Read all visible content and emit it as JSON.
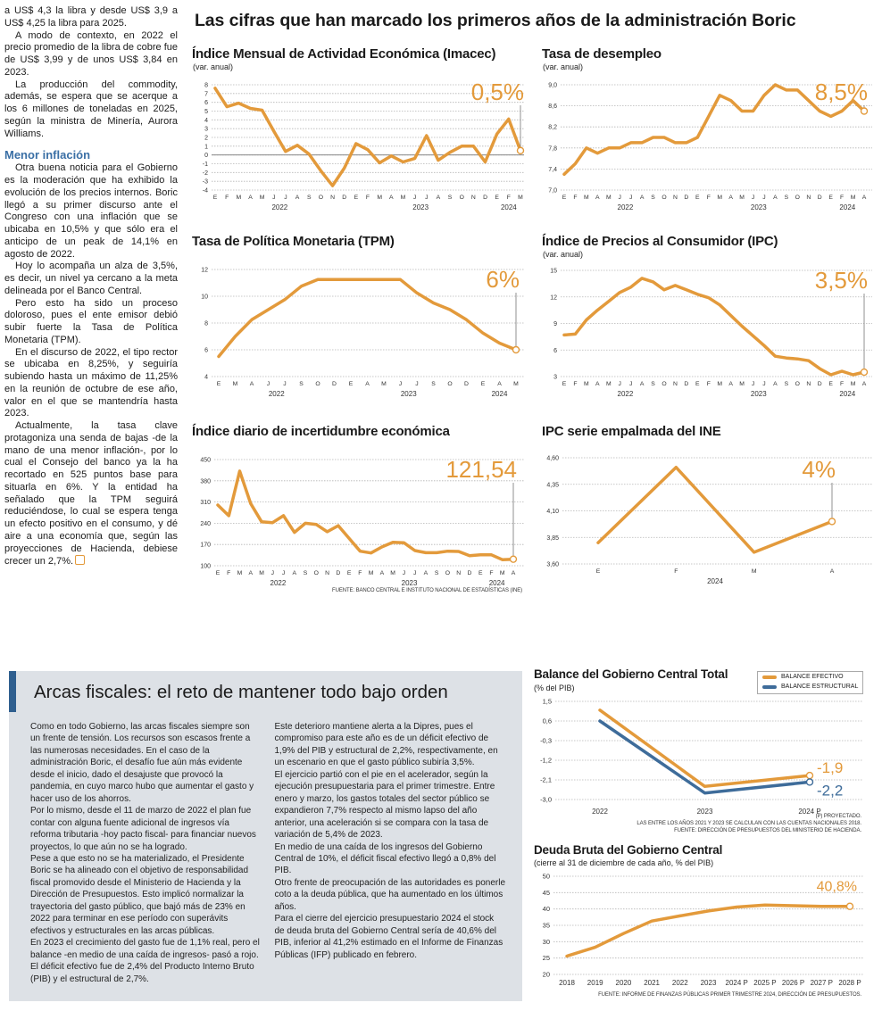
{
  "page": {
    "title": "Las cifras que han marcado los primeros años de la administración Boric"
  },
  "left_column": {
    "paragraphs_before": [
      "a US$ 4,3 la libra y desde US$ 3,9 a US$ 4,25 la libra para 2025.",
      "A modo de contexto, en 2022 el precio promedio de la libra de cobre fue de US$ 3,99 y de unos US$ 3,84 en 2023.",
      "La producción del commodity, además, se espera que se acerque a los 6 millones de toneladas en 2025, según la ministra de Minería, Aurora Williams."
    ],
    "subheading": "Menor inflación",
    "paragraphs_after": [
      "Otra buena noticia para el Gobierno es la moderación que ha exhibido la evolución de los precios internos. Boric llegó a su primer discurso ante el Congreso con una inflación que se ubicaba en 10,5% y que sólo era el anticipo de un peak de 14,1% en agosto de 2022.",
      "Hoy lo acompaña un alza de 3,5%, es decir, un nivel ya cercano a la meta delineada por el Banco Central.",
      "Pero esto ha sido un proceso doloroso, pues el ente emisor debió subir fuerte la Tasa de Política Monetaria (TPM).",
      "En el discurso de 2022, el tipo rector se ubicaba en 8,25%, y seguiría subiendo hasta un máximo de 11,25% en la reunión de octubre de ese año, valor en el que se mantendría hasta 2023.",
      "Actualmente, la tasa clave protagoniza una senda de bajas -de la mano de una menor inflación-, por lo cual el Consejo del banco ya la ha recortado en 525 puntos base para situarla en 6%. Y la entidad ha señalado que la TPM seguirá reduciéndose, lo cual se espera tenga un efecto positivo en el consumo, y dé aire a una economía que, según las proyecciones de Hacienda, debiese crecer un 2,7%."
    ],
    "subheading_color": "#3a6fa5"
  },
  "box": {
    "title": "Arcas fiscales: el reto de mantener todo bajo orden",
    "background": "#dde1e6",
    "accent": "#2f5f8f",
    "paragraphs": [
      "Como en todo Gobierno, las arcas fiscales siempre son un frente de tensión. Los recursos son escasos frente a las numerosas necesidades. En el caso de la administración Boric, el desafío fue aún más evidente desde el inicio, dado el desajuste que provocó la pandemia, en cuyo marco hubo que aumentar el gasto y hacer uso de los ahorros.",
      "Por lo mismo, desde el 11 de marzo de 2022 el plan fue contar con alguna fuente adicional de ingresos vía reforma tributaria -hoy pacto fiscal- para financiar nuevos proyectos, lo que aún no se ha logrado.",
      "Pese a que esto no se ha materializado, el Presidente Boric se ha alineado con el objetivo de responsabilidad fiscal promovido desde el Ministerio de Hacienda y la Dirección de Presupuestos. Esto implicó normalizar la trayectoria del gasto público, que bajó más de 23% en 2022 para terminar en ese período con superávits efectivos y estructurales en las arcas públicas.",
      "En 2023 el crecimiento del gasto fue de 1,1% real, pero el balance -en medio de una caída de ingresos- pasó a rojo. El déficit efectivo fue de 2,4% del Producto Interno Bruto (PIB) y el estructural de 2,7%.",
      "Este deterioro mantiene alerta a la Dipres, pues el compromiso para este año es de un déficit efectivo de 1,9% del PIB y estructural de 2,2%, respectivamente, en un escenario en que el gasto público subiría 3,5%.",
      "El ejercicio partió con el pie en el acelerador, según la ejecución presupuestaria para el primer trimestre. Entre enero y marzo, los gastos totales del sector público se expandieron 7,7% respecto al mismo lapso del año anterior, una aceleración si se compara con la tasa de variación de 5,4% de 2023.",
      "En medio de una caída de los ingresos del Gobierno Central de 10%, el déficit fiscal efectivo llegó a 0,8% del PIB.",
      "Otro frente de preocupación de las autoridades es ponerle coto a la deuda pública, que ha aumentado en los últimos años.",
      "Para el cierre del ejercicio presupuestario 2024 el stock de deuda bruta del Gobierno Central sería de 40,6% del PIB, inferior al 41,2% estimado en el Informe de Finanzas Públicas (IFP) publicado en febrero."
    ]
  },
  "chart_data": [
    {
      "type": "line",
      "title": "Índice Mensual de Actividad Económica (Imacec)",
      "subtitle": "(var. anual)",
      "ylim": [
        -4,
        8
      ],
      "ytick_labels": [
        "8",
        "7",
        "6",
        "5",
        "4",
        "3",
        "2",
        "1",
        "0",
        "-1",
        "-2",
        "-3",
        "-4"
      ],
      "zero_line": true,
      "grid": true,
      "x": [
        "E",
        "F",
        "M",
        "A",
        "M",
        "J",
        "J",
        "A",
        "S",
        "O",
        "N",
        "D",
        "E",
        "F",
        "M",
        "A",
        "M",
        "J",
        "J",
        "A",
        "S",
        "O",
        "N",
        "D",
        "E",
        "F",
        "M"
      ],
      "year_labels": [
        {
          "label": "2022",
          "at": 5.5
        },
        {
          "label": "2023",
          "at": 17.5
        },
        {
          "label": "2024",
          "at": 25
        }
      ],
      "series": [
        {
          "values": [
            7.6,
            5.5,
            5.9,
            5.3,
            5.1,
            2.7,
            0.4,
            1.1,
            0.1,
            -1.8,
            -3.5,
            -1.5,
            1.3,
            0.6,
            -0.9,
            -0.1,
            -0.8,
            -0.4,
            2.2,
            -0.6,
            0.3,
            1.0,
            1.0,
            -0.8,
            2.4,
            4.1,
            0.5
          ],
          "color": "#e39a3b",
          "callout": "0,5%"
        }
      ]
    },
    {
      "type": "line",
      "title": "Tasa de desempleo",
      "subtitle": "(var. anual)",
      "ylim": [
        7.0,
        9.0
      ],
      "ytick_labels": [
        "9,0",
        "8,6",
        "8,2",
        "7,8",
        "7,4",
        "7,0"
      ],
      "grid": true,
      "x": [
        "E",
        "F",
        "M",
        "A",
        "M",
        "J",
        "J",
        "A",
        "S",
        "O",
        "N",
        "D",
        "E",
        "F",
        "M",
        "A",
        "M",
        "J",
        "J",
        "A",
        "S",
        "O",
        "N",
        "D",
        "E",
        "F",
        "M",
        "A"
      ],
      "year_labels": [
        {
          "label": "2022",
          "at": 5.5
        },
        {
          "label": "2023",
          "at": 17.5
        },
        {
          "label": "2024",
          "at": 25.5
        }
      ],
      "series": [
        {
          "values": [
            7.3,
            7.5,
            7.8,
            7.7,
            7.8,
            7.8,
            7.9,
            7.9,
            8.0,
            8.0,
            7.9,
            7.9,
            8.0,
            8.4,
            8.8,
            8.7,
            8.5,
            8.5,
            8.8,
            9.0,
            8.9,
            8.9,
            8.7,
            8.5,
            8.4,
            8.5,
            8.7,
            8.5
          ],
          "color": "#e39a3b",
          "callout": "8,5%"
        }
      ]
    },
    {
      "type": "line",
      "title": "Tasa de Política Monetaria (TPM)",
      "ylim": [
        4,
        12
      ],
      "ytick_labels": [
        "12",
        "10",
        "8",
        "6",
        "4"
      ],
      "grid": true,
      "x": [
        "E",
        "M",
        "A",
        "J",
        "J",
        "S",
        "O",
        "D",
        "E",
        "A",
        "M",
        "J",
        "J",
        "S",
        "O",
        "D",
        "E",
        "A",
        "M"
      ],
      "year_labels": [
        {
          "label": "2022",
          "at": 3.5
        },
        {
          "label": "2023",
          "at": 11.5
        },
        {
          "label": "2024",
          "at": 17
        }
      ],
      "series": [
        {
          "values": [
            5.5,
            7.0,
            8.25,
            9.0,
            9.75,
            10.75,
            11.25,
            11.25,
            11.25,
            11.25,
            11.25,
            11.25,
            10.25,
            9.5,
            9.0,
            8.25,
            7.25,
            6.5,
            6.0
          ],
          "color": "#e39a3b",
          "callout": "6%"
        }
      ]
    },
    {
      "type": "line",
      "title": "Índice de Precios al Consumidor (IPC)",
      "subtitle": "(var. anual)",
      "ylim": [
        3,
        15
      ],
      "ytick_labels": [
        "15",
        "12",
        "9",
        "6",
        "3"
      ],
      "grid": true,
      "x": [
        "E",
        "F",
        "M",
        "A",
        "M",
        "J",
        "J",
        "A",
        "S",
        "O",
        "N",
        "D",
        "E",
        "F",
        "M",
        "A",
        "M",
        "J",
        "J",
        "A",
        "S",
        "O",
        "N",
        "D",
        "E",
        "F",
        "M",
        "A"
      ],
      "year_labels": [
        {
          "label": "2022",
          "at": 5.5
        },
        {
          "label": "2023",
          "at": 17.5
        },
        {
          "label": "2024",
          "at": 25.5
        }
      ],
      "series": [
        {
          "values": [
            7.7,
            7.8,
            9.4,
            10.5,
            11.5,
            12.5,
            13.1,
            14.1,
            13.7,
            12.8,
            13.3,
            12.8,
            12.3,
            11.9,
            11.1,
            9.9,
            8.7,
            7.6,
            6.5,
            5.3,
            5.1,
            5.0,
            4.8,
            3.9,
            3.2,
            3.6,
            3.2,
            3.5
          ],
          "color": "#e39a3b",
          "callout": "3,5%"
        }
      ]
    },
    {
      "type": "line",
      "title": "Índice diario de incertidumbre económica",
      "ylim": [
        100,
        450
      ],
      "ytick_labels": [
        "450",
        "380",
        "310",
        "240",
        "170",
        "100"
      ],
      "grid": true,
      "x": [
        "E",
        "F",
        "M",
        "A",
        "M",
        "J",
        "J",
        "A",
        "S",
        "O",
        "N",
        "D",
        "E",
        "F",
        "M",
        "A",
        "M",
        "J",
        "J",
        "A",
        "S",
        "O",
        "N",
        "D",
        "E",
        "F",
        "M",
        "A"
      ],
      "year_labels": [
        {
          "label": "2022",
          "at": 5.5
        },
        {
          "label": "2023",
          "at": 17.5
        },
        {
          "label": "2024",
          "at": 25.5
        }
      ],
      "series": [
        {
          "values": [
            300,
            265,
            412,
            305,
            245,
            242,
            265,
            210,
            240,
            236,
            212,
            232,
            190,
            148,
            142,
            162,
            177,
            176,
            150,
            143,
            143,
            148,
            147,
            133,
            136,
            136,
            120,
            121.54
          ],
          "color": "#e39a3b",
          "callout": "121,54"
        }
      ],
      "source": "FUENTE: BANCO CENTRAL E INSTITUTO NACIONAL DE ESTADÍSTICAS (INE)"
    },
    {
      "type": "line",
      "title": "IPC serie empalmada del INE",
      "ylim": [
        3.6,
        4.6
      ],
      "ytick_labels": [
        "4,60",
        "4,35",
        "4,10",
        "3,85",
        "3,60"
      ],
      "grid": true,
      "x": [
        "E",
        "F",
        "M",
        "A"
      ],
      "year_labels": [
        {
          "label": "2024",
          "at": 1.5
        }
      ],
      "series": [
        {
          "values": [
            3.8,
            4.51,
            3.71,
            4.0
          ],
          "color": "#e39a3b",
          "callout": "4%"
        }
      ]
    },
    {
      "type": "line",
      "title": "Balance del Gobierno Central Total",
      "subtitle": "(% del PIB)",
      "ylim": [
        -3.0,
        1.5
      ],
      "ytick_labels": [
        "1,5",
        "0,6",
        "-0,3",
        "-1,2",
        "-2,1",
        "-3,0"
      ],
      "grid": true,
      "legend": "top-right",
      "x": [
        "2022",
        "2023",
        "2024 P"
      ],
      "series": [
        {
          "name": "BALANCE EFECTIVO",
          "values": [
            1.1,
            -2.4,
            -1.9
          ],
          "color": "#e39a3b",
          "callout": "-1,9"
        },
        {
          "name": "BALANCE ESTRUCTURAL",
          "values": [
            0.6,
            -2.7,
            -2.2
          ],
          "color": "#3e6c9a",
          "callout": "-2,2"
        }
      ],
      "notes": [
        "(P) PROYECTADO.",
        "LAS ENTRE LOS AÑOS 2021 Y 2023 SE CALCULAN  CON LAS CUENTAS NACIONALES 2018.",
        "FUENTE: DIRECCIÓN DE PRESUPUESTOS DEL MINISTERIO DE HACIENDA."
      ]
    },
    {
      "type": "line",
      "title": "Deuda Bruta del Gobierno Central",
      "subtitle": "(cierre al 31 de diciembre de cada año, % del PIB)",
      "ylim": [
        20,
        50
      ],
      "ytick_labels": [
        "50",
        "45",
        "40",
        "35",
        "30",
        "25",
        "20"
      ],
      "grid": true,
      "x": [
        "2018",
        "2019",
        "2020",
        "2021",
        "2022",
        "2023",
        "2024 P",
        "2025 P",
        "2026 P",
        "2027 P",
        "2028 P"
      ],
      "series": [
        {
          "values": [
            25.6,
            28.3,
            32.5,
            36.3,
            37.9,
            39.4,
            40.6,
            41.2,
            41.0,
            40.8,
            40.8
          ],
          "color": "#e39a3b",
          "callout": "40,8%"
        }
      ],
      "source": "FUENTE: INFORME DE FINANZAS PÚBLICAS PRIMER TRIMESTRE 2024, DIRECCIÓN DE PRESUPUESTOS."
    }
  ]
}
